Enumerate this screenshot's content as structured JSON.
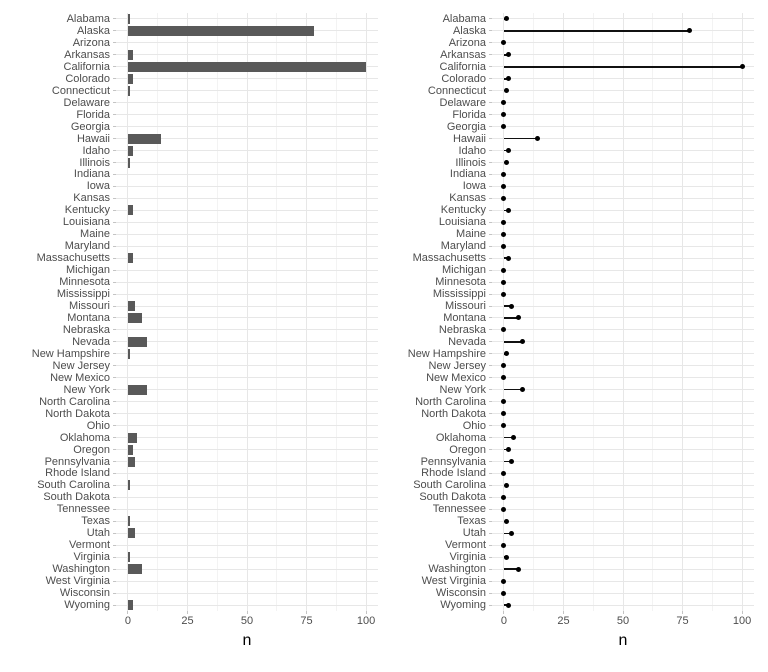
{
  "figure": {
    "background_color": "#ffffff",
    "colors": {
      "bar_fill": "#595959",
      "point": "#000000",
      "segment": "#111111",
      "grid_major": "#e7e7e7",
      "grid_minor": "#f3f3f3",
      "axis_tick": "#c4c4c4",
      "axis_text": "#4d4d4d",
      "axis_title": "#000000"
    }
  },
  "chart_data": [
    {
      "type": "bar",
      "orientation": "horizontal",
      "title": "",
      "xlabel": "n",
      "ylabel": "",
      "xlim": [
        0,
        100
      ],
      "xticks": [
        0,
        25,
        50,
        75,
        100
      ],
      "minor_xticks": [
        12.5,
        37.5,
        62.5,
        87.5
      ],
      "grid": "on",
      "legend": "none",
      "categories": [
        "Alabama",
        "Alaska",
        "Arizona",
        "Arkansas",
        "California",
        "Colorado",
        "Connecticut",
        "Delaware",
        "Florida",
        "Georgia",
        "Hawaii",
        "Idaho",
        "Illinois",
        "Indiana",
        "Iowa",
        "Kansas",
        "Kentucky",
        "Louisiana",
        "Maine",
        "Maryland",
        "Massachusetts",
        "Michigan",
        "Minnesota",
        "Mississippi",
        "Missouri",
        "Montana",
        "Nebraska",
        "Nevada",
        "New Hampshire",
        "New Jersey",
        "New Mexico",
        "New York",
        "North Carolina",
        "North Dakota",
        "Ohio",
        "Oklahoma",
        "Oregon",
        "Pennsylvania",
        "Rhode Island",
        "South Carolina",
        "South Dakota",
        "Tennessee",
        "Texas",
        "Utah",
        "Vermont",
        "Virginia",
        "Washington",
        "West Virginia",
        "Wisconsin",
        "Wyoming"
      ],
      "values": [
        1,
        78,
        0,
        2,
        100,
        2,
        1,
        0,
        0,
        0,
        14,
        2,
        1,
        0,
        0,
        0,
        2,
        0,
        0,
        0,
        2,
        0,
        0,
        0,
        3,
        6,
        0,
        8,
        1,
        0,
        0,
        8,
        0,
        0,
        0,
        4,
        2,
        3,
        0,
        1,
        0,
        0,
        1,
        3,
        0,
        1,
        6,
        0,
        0,
        2
      ]
    },
    {
      "type": "lollipop",
      "orientation": "horizontal",
      "title": "",
      "xlabel": "n",
      "ylabel": "",
      "xlim": [
        0,
        100
      ],
      "xticks": [
        0,
        25,
        50,
        75,
        100
      ],
      "minor_xticks": [
        12.5,
        37.5,
        62.5,
        87.5
      ],
      "grid": "on",
      "legend": "none",
      "categories": [
        "Alabama",
        "Alaska",
        "Arizona",
        "Arkansas",
        "California",
        "Colorado",
        "Connecticut",
        "Delaware",
        "Florida",
        "Georgia",
        "Hawaii",
        "Idaho",
        "Illinois",
        "Indiana",
        "Iowa",
        "Kansas",
        "Kentucky",
        "Louisiana",
        "Maine",
        "Maryland",
        "Massachusetts",
        "Michigan",
        "Minnesota",
        "Mississippi",
        "Missouri",
        "Montana",
        "Nebraska",
        "Nevada",
        "New Hampshire",
        "New Jersey",
        "New Mexico",
        "New York",
        "North Carolina",
        "North Dakota",
        "Ohio",
        "Oklahoma",
        "Oregon",
        "Pennsylvania",
        "Rhode Island",
        "South Carolina",
        "South Dakota",
        "Tennessee",
        "Texas",
        "Utah",
        "Vermont",
        "Virginia",
        "Washington",
        "West Virginia",
        "Wisconsin",
        "Wyoming"
      ],
      "values": [
        1,
        78,
        0,
        2,
        100,
        2,
        1,
        0,
        0,
        0,
        14,
        2,
        1,
        0,
        0,
        0,
        2,
        0,
        0,
        0,
        2,
        0,
        0,
        0,
        3,
        6,
        0,
        8,
        1,
        0,
        0,
        8,
        0,
        0,
        0,
        4,
        2,
        3,
        0,
        1,
        0,
        0,
        1,
        3,
        0,
        1,
        6,
        0,
        0,
        2
      ]
    }
  ]
}
